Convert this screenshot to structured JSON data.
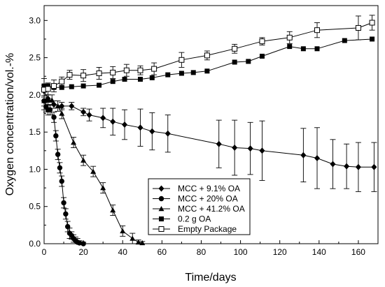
{
  "chart_data": {
    "type": "line",
    "title": "",
    "xlabel": "Time/days",
    "ylabel": "Oxygen concentration/vol.-%",
    "xlim": [
      0,
      170
    ],
    "ylim": [
      0,
      3.2
    ],
    "xticks": [
      "0",
      "20",
      "40",
      "60",
      "80",
      "100",
      "120",
      "140",
      "160"
    ],
    "yticks": [
      "0.0",
      "0.5",
      "1.0",
      "1.5",
      "2.0",
      "2.5",
      "3.0"
    ],
    "grid": false,
    "legend": "center-right",
    "series": [
      {
        "name": "MCC + 9.1% OA",
        "marker": "diamond-filled",
        "x": [
          0,
          2,
          5,
          9,
          14,
          20,
          23,
          30,
          35,
          41,
          49,
          55,
          63,
          89,
          97,
          105,
          111,
          132,
          139,
          147,
          154,
          160,
          168
        ],
        "y": [
          2.05,
          1.95,
          1.87,
          1.85,
          1.85,
          1.77,
          1.73,
          1.69,
          1.64,
          1.6,
          1.56,
          1.51,
          1.48,
          1.34,
          1.29,
          1.28,
          1.25,
          1.19,
          1.15,
          1.07,
          1.04,
          1.03,
          1.03
        ],
        "err": [
          0.08,
          0.05,
          0.05,
          0.05,
          0.05,
          0.05,
          0.08,
          0.13,
          0.18,
          0.2,
          0.25,
          0.25,
          0.25,
          0.32,
          0.37,
          0.35,
          0.4,
          0.36,
          0.41,
          0.33,
          0.3,
          0.33,
          0.33
        ]
      },
      {
        "name": "MCC + 20% OA",
        "marker": "circle-filled",
        "x": [
          0,
          1,
          2,
          3,
          5,
          6,
          7,
          8,
          9,
          10,
          11,
          12,
          13,
          14,
          15,
          16,
          17,
          18,
          20
        ],
        "y": [
          1.92,
          1.84,
          1.8,
          1.8,
          1.7,
          1.45,
          1.2,
          1.02,
          0.84,
          0.55,
          0.4,
          0.23,
          0.14,
          0.11,
          0.07,
          0.04,
          0.02,
          0.01,
          0.0
        ],
        "err": [
          0.07,
          0.07,
          0.07,
          0.07,
          0.07,
          0.07,
          0.07,
          0.07,
          0.07,
          0.07,
          0.07,
          0.07,
          0.07,
          0.05,
          0.05,
          0.05,
          0.05,
          0.03,
          0.02
        ]
      },
      {
        "name": "MCC + 41.2% OA",
        "marker": "triangle-filled",
        "x": [
          0,
          2,
          4,
          7,
          9,
          15,
          20,
          25,
          30,
          35,
          40,
          45,
          48,
          50
        ],
        "y": [
          1.92,
          1.93,
          1.93,
          1.85,
          1.75,
          1.36,
          1.12,
          0.97,
          0.75,
          0.45,
          0.17,
          0.07,
          0.02,
          0.01
        ],
        "err": [
          0.12,
          0.07,
          0.07,
          0.07,
          0.07,
          0.07,
          0.07,
          0.07,
          0.07,
          0.07,
          0.07,
          0.07,
          0.03,
          0.02
        ]
      },
      {
        "name": "0.2 g OA",
        "marker": "square-filled",
        "x": [
          0,
          2,
          5,
          9,
          14,
          20,
          28,
          35,
          41,
          49,
          55,
          63,
          70,
          76,
          83,
          97,
          104,
          111,
          125,
          132,
          139,
          153,
          167
        ],
        "y": [
          2.12,
          2.12,
          2.1,
          2.1,
          2.11,
          2.12,
          2.13,
          2.18,
          2.21,
          2.21,
          2.23,
          2.27,
          2.29,
          2.3,
          2.32,
          2.44,
          2.45,
          2.52,
          2.65,
          2.62,
          2.62,
          2.73,
          2.75
        ]
      },
      {
        "name": "Empty Package",
        "marker": "square-open",
        "x": [
          0,
          2,
          5,
          9,
          13,
          20,
          28,
          35,
          42,
          49,
          56,
          70,
          83,
          97,
          111,
          125,
          139,
          160,
          167
        ],
        "y": [
          2.07,
          2.08,
          2.12,
          2.18,
          2.27,
          2.26,
          2.29,
          2.3,
          2.33,
          2.33,
          2.35,
          2.47,
          2.53,
          2.62,
          2.72,
          2.77,
          2.87,
          2.9,
          2.97
        ],
        "err": [
          0.15,
          0.08,
          0.08,
          0.06,
          0.06,
          0.08,
          0.08,
          0.08,
          0.08,
          0.06,
          0.08,
          0.1,
          0.06,
          0.06,
          0.05,
          0.08,
          0.1,
          0.16,
          0.1
        ]
      }
    ]
  }
}
